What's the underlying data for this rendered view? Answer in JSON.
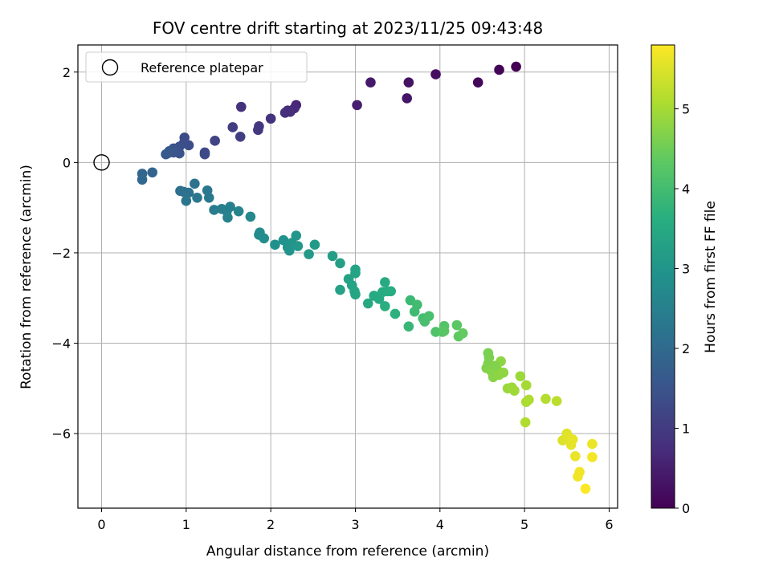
{
  "chart_data": {
    "type": "scatter",
    "title": "FOV centre drift starting at 2023/11/25 09:43:48",
    "xlabel": "Angular distance from reference (arcmin)",
    "ylabel": "Rotation from reference (arcmin)",
    "xlim": [
      -0.28,
      6.1
    ],
    "ylim": [
      -7.65,
      2.6
    ],
    "xticks": [
      0,
      1,
      2,
      3,
      4,
      5,
      6
    ],
    "yticks": [
      -6,
      -4,
      -2,
      0,
      2
    ],
    "grid": true,
    "legend": {
      "position": "top-left",
      "entries": [
        "Reference platepar"
      ]
    },
    "reference_point": {
      "x": 0,
      "y": 0,
      "label": "Reference platepar"
    },
    "colorbar": {
      "label": "Hours from first FF file",
      "colormap": "viridis",
      "range": [
        0,
        5.8
      ],
      "ticks": [
        0,
        1,
        2,
        3,
        4,
        5
      ]
    },
    "points": [
      [
        4.9,
        2.12,
        0.0
      ],
      [
        4.7,
        2.05,
        0.05
      ],
      [
        4.45,
        1.77,
        0.12
      ],
      [
        3.95,
        1.95,
        0.22
      ],
      [
        3.63,
        1.77,
        0.3
      ],
      [
        3.61,
        1.42,
        0.35
      ],
      [
        3.18,
        1.77,
        0.42
      ],
      [
        3.02,
        1.27,
        0.5
      ],
      [
        2.3,
        1.27,
        0.62
      ],
      [
        2.28,
        1.2,
        0.68
      ],
      [
        2.2,
        1.15,
        0.72
      ],
      [
        2.17,
        1.1,
        0.76
      ],
      [
        2.23,
        1.12,
        0.74
      ],
      [
        2.0,
        0.97,
        0.85
      ],
      [
        1.86,
        0.8,
        0.9
      ],
      [
        1.85,
        0.72,
        0.95
      ],
      [
        1.65,
        1.23,
        0.82
      ],
      [
        1.64,
        0.57,
        1.05
      ],
      [
        1.55,
        0.78,
        1.02
      ],
      [
        1.34,
        0.48,
        1.15
      ],
      [
        1.22,
        0.22,
        1.25
      ],
      [
        1.22,
        0.18,
        1.28
      ],
      [
        0.98,
        0.55,
        1.3
      ],
      [
        1.03,
        0.38,
        1.35
      ],
      [
        0.97,
        0.42,
        1.38
      ],
      [
        0.92,
        0.35,
        1.42
      ],
      [
        0.88,
        0.28,
        1.45
      ],
      [
        0.85,
        0.31,
        1.48
      ],
      [
        0.92,
        0.2,
        1.5
      ],
      [
        0.85,
        0.22,
        1.52
      ],
      [
        0.78,
        0.2,
        1.55
      ],
      [
        0.8,
        0.25,
        1.58
      ],
      [
        0.76,
        0.18,
        1.6
      ],
      [
        0.6,
        -0.22,
        1.85
      ],
      [
        0.48,
        -0.25,
        1.9
      ],
      [
        0.48,
        -0.38,
        1.95
      ],
      [
        0.93,
        -0.63,
        2.1
      ],
      [
        0.97,
        -0.65,
        2.15
      ],
      [
        1.03,
        -0.67,
        2.18
      ],
      [
        1.1,
        -0.47,
        2.2
      ],
      [
        1.0,
        -0.85,
        2.25
      ],
      [
        1.13,
        -0.78,
        2.28
      ],
      [
        1.25,
        -0.62,
        2.3
      ],
      [
        1.27,
        -0.78,
        2.32
      ],
      [
        1.33,
        -1.05,
        2.4
      ],
      [
        1.42,
        -1.03,
        2.45
      ],
      [
        1.48,
        -1.08,
        2.5
      ],
      [
        1.52,
        -0.98,
        2.48
      ],
      [
        1.49,
        -1.22,
        2.55
      ],
      [
        1.62,
        -1.08,
        2.6
      ],
      [
        1.76,
        -1.2,
        2.68
      ],
      [
        1.86,
        -1.6,
        2.75
      ],
      [
        1.87,
        -1.55,
        2.78
      ],
      [
        1.92,
        -1.68,
        2.82
      ],
      [
        2.05,
        -1.82,
        2.88
      ],
      [
        2.15,
        -1.72,
        2.92
      ],
      [
        2.2,
        -1.88,
        2.95
      ],
      [
        2.22,
        -1.95,
        2.98
      ],
      [
        2.25,
        -1.78,
        3.0
      ],
      [
        2.3,
        -1.62,
        3.02
      ],
      [
        2.32,
        -1.85,
        3.05
      ],
      [
        2.45,
        -2.03,
        3.1
      ],
      [
        2.52,
        -1.82,
        3.12
      ],
      [
        2.73,
        -2.07,
        3.2
      ],
      [
        2.82,
        -2.23,
        3.25
      ],
      [
        2.82,
        -2.82,
        3.3
      ],
      [
        2.92,
        -2.58,
        3.32
      ],
      [
        2.96,
        -2.72,
        3.35
      ],
      [
        2.99,
        -2.85,
        3.38
      ],
      [
        3.0,
        -2.92,
        3.4
      ],
      [
        3.0,
        -2.45,
        3.36
      ],
      [
        3.0,
        -2.37,
        3.34
      ],
      [
        3.15,
        -3.12,
        3.48
      ],
      [
        3.22,
        -2.95,
        3.5
      ],
      [
        3.28,
        -3.02,
        3.52
      ],
      [
        3.32,
        -2.87,
        3.55
      ],
      [
        3.35,
        -2.65,
        3.53
      ],
      [
        3.38,
        -2.85,
        3.56
      ],
      [
        3.42,
        -2.85,
        3.58
      ],
      [
        3.35,
        -3.18,
        3.62
      ],
      [
        3.47,
        -3.35,
        3.68
      ],
      [
        3.63,
        -3.63,
        3.85
      ],
      [
        3.65,
        -3.05,
        3.9
      ],
      [
        3.7,
        -3.3,
        3.95
      ],
      [
        3.73,
        -3.15,
        3.98
      ],
      [
        3.8,
        -3.45,
        4.02
      ],
      [
        3.82,
        -3.52,
        4.05
      ],
      [
        3.87,
        -3.4,
        4.08
      ],
      [
        3.95,
        -3.75,
        4.15
      ],
      [
        4.05,
        -3.62,
        4.2
      ],
      [
        4.03,
        -3.75,
        4.22
      ],
      [
        4.05,
        -3.73,
        4.25
      ],
      [
        4.2,
        -3.6,
        4.3
      ],
      [
        4.22,
        -3.85,
        4.35
      ],
      [
        4.27,
        -3.78,
        4.38
      ],
      [
        4.57,
        -4.22,
        4.6
      ],
      [
        4.58,
        -4.32,
        4.62
      ],
      [
        4.57,
        -4.45,
        4.65
      ],
      [
        4.55,
        -4.55,
        4.67
      ],
      [
        4.6,
        -4.6,
        4.7
      ],
      [
        4.62,
        -4.65,
        4.72
      ],
      [
        4.63,
        -4.75,
        4.74
      ],
      [
        4.67,
        -4.55,
        4.76
      ],
      [
        4.7,
        -4.7,
        4.78
      ],
      [
        4.72,
        -4.4,
        4.8
      ],
      [
        4.75,
        -4.65,
        4.82
      ],
      [
        4.65,
        -4.5,
        4.68
      ],
      [
        4.8,
        -5.0,
        4.9
      ],
      [
        4.85,
        -4.98,
        4.92
      ],
      [
        4.88,
        -5.05,
        4.95
      ],
      [
        4.95,
        -4.73,
        4.93
      ],
      [
        5.02,
        -4.93,
        5.0
      ],
      [
        5.02,
        -5.3,
        5.05
      ],
      [
        5.05,
        -5.25,
        5.08
      ],
      [
        5.01,
        -5.75,
        5.1
      ],
      [
        5.25,
        -5.23,
        5.15
      ],
      [
        5.38,
        -5.28,
        5.2
      ],
      [
        5.45,
        -6.15,
        5.5
      ],
      [
        5.5,
        -6.0,
        5.52
      ],
      [
        5.52,
        -6.1,
        5.55
      ],
      [
        5.55,
        -6.25,
        5.58
      ],
      [
        5.57,
        -6.13,
        5.6
      ],
      [
        5.6,
        -6.5,
        5.62
      ],
      [
        5.63,
        -6.95,
        5.68
      ],
      [
        5.65,
        -6.85,
        5.7
      ],
      [
        5.72,
        -7.22,
        5.78
      ],
      [
        5.8,
        -6.23,
        5.65
      ],
      [
        5.8,
        -6.52,
        5.72
      ]
    ]
  }
}
